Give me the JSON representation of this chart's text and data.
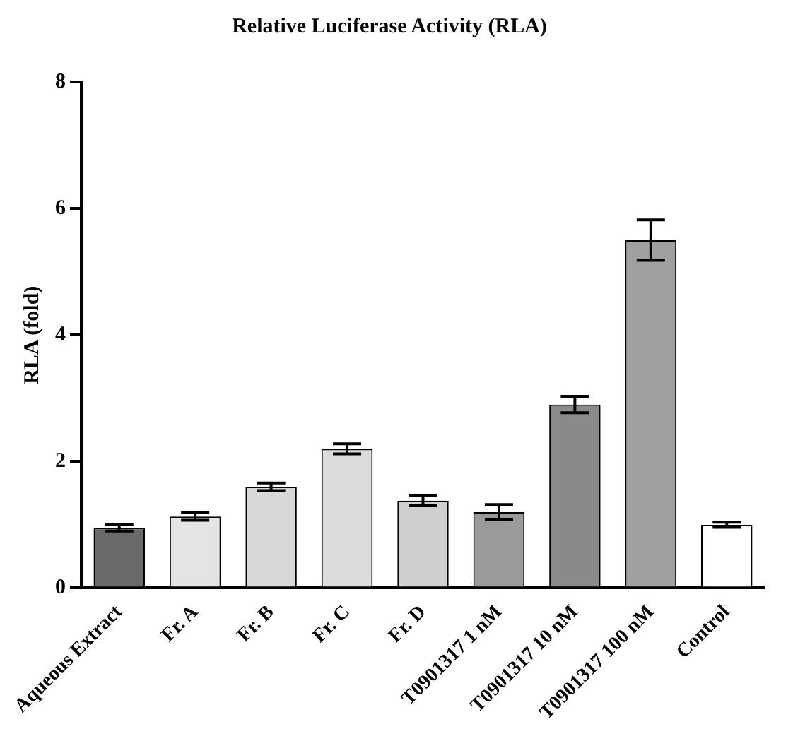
{
  "chart_data": {
    "type": "bar",
    "title": "Relative Luciferase Activity (RLA)",
    "ylabel": "RLA (fold)",
    "categories": [
      "Aqueous Extract",
      "Fr. A",
      "Fr. B",
      "Fr. C",
      "Fr. D",
      "T0901317 1 nM",
      "T0901317 10 nM",
      "T0901317 100 nM",
      "Control"
    ],
    "values": [
      0.95,
      1.13,
      1.6,
      2.2,
      1.38,
      1.2,
      2.9,
      5.5,
      1.0
    ],
    "errors": [
      0.05,
      0.06,
      0.06,
      0.08,
      0.08,
      0.12,
      0.13,
      0.32,
      0.04
    ],
    "colors": [
      "#6a6a6a",
      "#e4e4e4",
      "#d8d8d8",
      "#dcdcdc",
      "#cfcfcf",
      "#9a9a9a",
      "#8a8a8a",
      "#a0a0a0",
      "#ffffff"
    ],
    "ylim": [
      0,
      8
    ],
    "yticks": [
      0,
      2,
      4,
      6,
      8
    ],
    "grid": false,
    "legend": false
  }
}
